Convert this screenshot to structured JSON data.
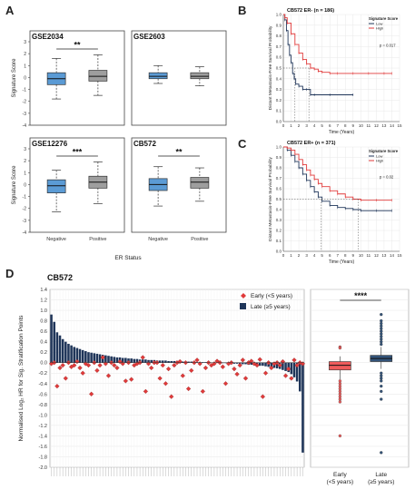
{
  "panels": {
    "A": "A",
    "B": "B",
    "C": "C",
    "D": "D"
  },
  "panelA": {
    "ylabel": "Signature Score",
    "xlabel": "ER Status",
    "categories": [
      "Negative",
      "Positive"
    ],
    "yticks": [
      -4,
      -3,
      -2,
      -1,
      0,
      1,
      2,
      3
    ],
    "subplots": [
      {
        "title": "GSE2034",
        "sig": "**",
        "boxes": [
          {
            "name": "Negative",
            "whisker_low": -1.8,
            "q1": -0.6,
            "median": -0.1,
            "q3": 0.4,
            "whisker_high": 1.6
          },
          {
            "name": "Positive",
            "whisker_low": -1.5,
            "q1": -0.3,
            "median": 0.1,
            "q3": 0.6,
            "whisker_high": 1.9
          }
        ]
      },
      {
        "title": "GSE2603",
        "sig": "",
        "boxes": [
          {
            "name": "Negative",
            "whisker_low": -0.5,
            "q1": -0.1,
            "median": 0.1,
            "q3": 0.4,
            "whisker_high": 1.0
          },
          {
            "name": "Positive",
            "whisker_low": -0.7,
            "q1": -0.1,
            "median": 0.1,
            "q3": 0.4,
            "whisker_high": 0.9
          }
        ]
      },
      {
        "title": "GSE12276",
        "sig": "***",
        "boxes": [
          {
            "name": "Negative",
            "whisker_low": -2.3,
            "q1": -0.7,
            "median": -0.1,
            "q3": 0.4,
            "whisker_high": 1.2
          },
          {
            "name": "Positive",
            "whisker_low": -1.6,
            "q1": -0.3,
            "median": 0.2,
            "q3": 0.7,
            "whisker_high": 1.9
          }
        ]
      },
      {
        "title": "CB572",
        "sig": "**",
        "boxes": [
          {
            "name": "Negative",
            "whisker_low": -1.8,
            "q1": -0.5,
            "median": 0.0,
            "q3": 0.5,
            "whisker_high": 1.5
          },
          {
            "name": "Positive",
            "whisker_low": -1.4,
            "q1": -0.3,
            "median": 0.2,
            "q3": 0.6,
            "whisker_high": 1.4
          }
        ]
      }
    ]
  },
  "chart_data": [
    {
      "type": "line",
      "title": "CB572 ER- (n = 186)",
      "xlabel": "Time (Years)",
      "ylabel": "Distant Metastasis-Free Survival Probability",
      "xlim": [
        0,
        15
      ],
      "ylim": [
        0,
        1
      ],
      "xticks": [
        0,
        1,
        2,
        3,
        4,
        5,
        6,
        7,
        8,
        9,
        10,
        11,
        12,
        13,
        14,
        15
      ],
      "yticks": [
        0,
        0.1,
        0.2,
        0.3,
        0.4,
        0.5,
        0.6,
        0.7,
        0.8,
        0.9,
        1.0
      ],
      "legend_title": "Signature Score",
      "legend_position": "top-right",
      "pvalue": "p = 0.017",
      "series": [
        {
          "name": "Low",
          "color": "#1f3559",
          "x": [
            0,
            0.2,
            0.4,
            0.6,
            0.8,
            1.0,
            1.2,
            1.4,
            1.6,
            2.0,
            2.5,
            3.0,
            3.5,
            4.0,
            6.0,
            9.0
          ],
          "y": [
            1.0,
            0.95,
            0.85,
            0.72,
            0.62,
            0.55,
            0.45,
            0.4,
            0.35,
            0.33,
            0.3,
            0.3,
            0.25,
            0.25,
            0.25,
            0.25
          ]
        },
        {
          "name": "High",
          "color": "#e03a3a",
          "x": [
            0,
            0.2,
            0.5,
            1.0,
            1.5,
            2.0,
            2.5,
            3.0,
            3.5,
            4.0,
            4.5,
            5.0,
            6.0,
            7.0,
            9.0,
            11.0,
            13.0,
            14.0
          ],
          "y": [
            1.0,
            0.97,
            0.92,
            0.82,
            0.72,
            0.64,
            0.58,
            0.54,
            0.5,
            0.49,
            0.47,
            0.46,
            0.45,
            0.45,
            0.45,
            0.45,
            0.45,
            0.45
          ]
        }
      ]
    },
    {
      "type": "line",
      "title": "CB572 ER+ (n = 371)",
      "xlabel": "Time (Years)",
      "ylabel": "Distant Metastasis-Free Survival Probability",
      "xlim": [
        0,
        15
      ],
      "ylim": [
        0,
        1
      ],
      "xticks": [
        0,
        1,
        2,
        3,
        4,
        5,
        6,
        7,
        8,
        9,
        10,
        11,
        12,
        13,
        14,
        15
      ],
      "yticks": [
        0,
        0.1,
        0.2,
        0.3,
        0.4,
        0.5,
        0.6,
        0.7,
        0.8,
        0.9,
        1.0
      ],
      "legend_title": "Signature Score",
      "legend_position": "top-right",
      "pvalue": "p = 0.02",
      "series": [
        {
          "name": "Low",
          "color": "#1f3559",
          "x": [
            0,
            0.5,
            1,
            1.5,
            2,
            2.5,
            3,
            3.5,
            4,
            4.5,
            5,
            6,
            7,
            8,
            9,
            10,
            12,
            14
          ],
          "y": [
            1.0,
            0.97,
            0.92,
            0.86,
            0.8,
            0.74,
            0.68,
            0.62,
            0.57,
            0.52,
            0.48,
            0.44,
            0.42,
            0.41,
            0.4,
            0.39,
            0.39,
            0.39
          ]
        },
        {
          "name": "High",
          "color": "#e03a3a",
          "x": [
            0,
            0.5,
            1,
            1.5,
            2,
            2.5,
            3,
            3.5,
            4,
            4.5,
            5,
            6,
            7,
            8,
            9,
            10,
            12,
            14
          ],
          "y": [
            1.0,
            0.99,
            0.97,
            0.93,
            0.88,
            0.83,
            0.78,
            0.73,
            0.69,
            0.65,
            0.62,
            0.58,
            0.55,
            0.52,
            0.5,
            0.49,
            0.49,
            0.49
          ]
        }
      ]
    },
    {
      "type": "bar",
      "title": "CB572",
      "ylabel": "Normalised Log₂ HR for Sig. Stratification Points",
      "ylim": [
        -2.0,
        1.4
      ],
      "yticks": [
        1.4,
        1.2,
        1.0,
        0.8,
        0.6,
        0.4,
        0.2,
        0.0,
        -0.2,
        -0.4,
        -0.6,
        -0.8,
        -1.0,
        -1.2,
        -1.4,
        -1.6,
        -1.8,
        -2.0
      ],
      "legend_position": "top-right",
      "legend": [
        {
          "name": "Early (<5 years)",
          "color": "#e03a3a",
          "marker": "diamond"
        },
        {
          "name": "Late (≥5 years)",
          "color": "#1f3559",
          "marker": "square"
        }
      ],
      "bars": [
        0.92,
        0.78,
        0.58,
        0.52,
        0.45,
        0.4,
        0.36,
        0.33,
        0.3,
        0.28,
        0.26,
        0.24,
        0.22,
        0.2,
        0.19,
        0.18,
        0.17,
        0.16,
        0.15,
        0.14,
        0.13,
        0.12,
        0.11,
        0.1,
        0.1,
        0.09,
        0.09,
        0.08,
        0.08,
        0.07,
        0.07,
        0.06,
        0.06,
        0.06,
        0.05,
        0.05,
        0.05,
        0.04,
        0.04,
        0.04,
        0.04,
        0.03,
        0.03,
        0.03,
        0.03,
        0.02,
        0.02,
        0.02,
        0.02,
        0.02,
        0.01,
        0.01,
        0.01,
        0.01,
        0.01,
        0.0,
        0.0,
        0.0,
        0.0,
        0.0,
        -0.01,
        -0.01,
        -0.01,
        -0.02,
        -0.02,
        -0.02,
        -0.03,
        -0.03,
        -0.03,
        -0.04,
        -0.04,
        -0.05,
        -0.05,
        -0.06,
        -0.06,
        -0.07,
        -0.08,
        -0.09,
        -0.1,
        -0.11,
        -0.12,
        -0.14,
        -0.16,
        -0.18,
        -0.22,
        -0.28,
        -0.36,
        -0.55,
        -1.72
      ],
      "early": [
        -0.02,
        0.0,
        -0.45,
        -0.1,
        -0.05,
        -0.3,
        0.0,
        -0.08,
        -0.05,
        0.02,
        -0.1,
        -0.2,
        -0.02,
        -0.05,
        -0.6,
        0.0,
        -0.15,
        -0.05,
        0.1,
        -0.02,
        -0.25,
        0.0,
        -0.05,
        -0.1,
        0.02,
        -0.02,
        -0.35,
        0.0,
        -0.32,
        -0.05,
        -0.02,
        0.0,
        0.1,
        -0.55,
        -0.02,
        -0.1,
        0.0,
        0.0,
        -0.3,
        -0.05,
        -0.4,
        -0.12,
        -0.65,
        -0.05,
        0.0,
        0.02,
        -0.25,
        0.0,
        -0.5,
        -0.15,
        0.0,
        0.05,
        -0.02,
        -0.55,
        -0.1,
        0.0,
        -0.05,
        -0.02,
        0.03,
        0.0,
        -0.08,
        -0.4,
        -0.02,
        0.0,
        -0.12,
        -0.22,
        -0.05,
        0.05,
        -0.3,
        0.0,
        0.03,
        -0.02,
        -0.05,
        0.06,
        -0.65,
        -0.2,
        0.0,
        -0.1,
        -0.02,
        0.0,
        -0.05,
        0.02,
        -0.25,
        -0.12,
        -0.3,
        0.05,
        -0.05,
        0.0,
        -0.02
      ]
    },
    {
      "type": "box",
      "categories": [
        "Early\n(<5 years)",
        "Late\n(≥5 years)"
      ],
      "sig": "****",
      "boxes": [
        {
          "name": "Early (<5 years)",
          "color": "#ef5b5b",
          "whisker_low": -0.32,
          "q1": -0.14,
          "median": -0.05,
          "q3": 0.02,
          "whisker_high": 0.12,
          "outliers": [
            0.3,
            0.28,
            -0.35,
            -0.4,
            -0.45,
            -0.5,
            -0.55,
            -0.6,
            -0.65,
            -0.7,
            -0.75,
            -1.4
          ]
        },
        {
          "name": "Late (≥5 years)",
          "color": "#33547a",
          "whisker_low": -0.12,
          "q1": 0.02,
          "median": 0.08,
          "q3": 0.14,
          "whisker_high": 0.3,
          "outliers": [
            0.35,
            0.4,
            0.45,
            0.5,
            0.55,
            0.6,
            0.65,
            0.7,
            0.75,
            0.8,
            0.92,
            -0.2,
            -0.25,
            -0.3,
            -0.35,
            -0.45,
            -0.55,
            -0.7,
            -1.72
          ]
        }
      ]
    }
  ],
  "genes_label_note": ""
}
